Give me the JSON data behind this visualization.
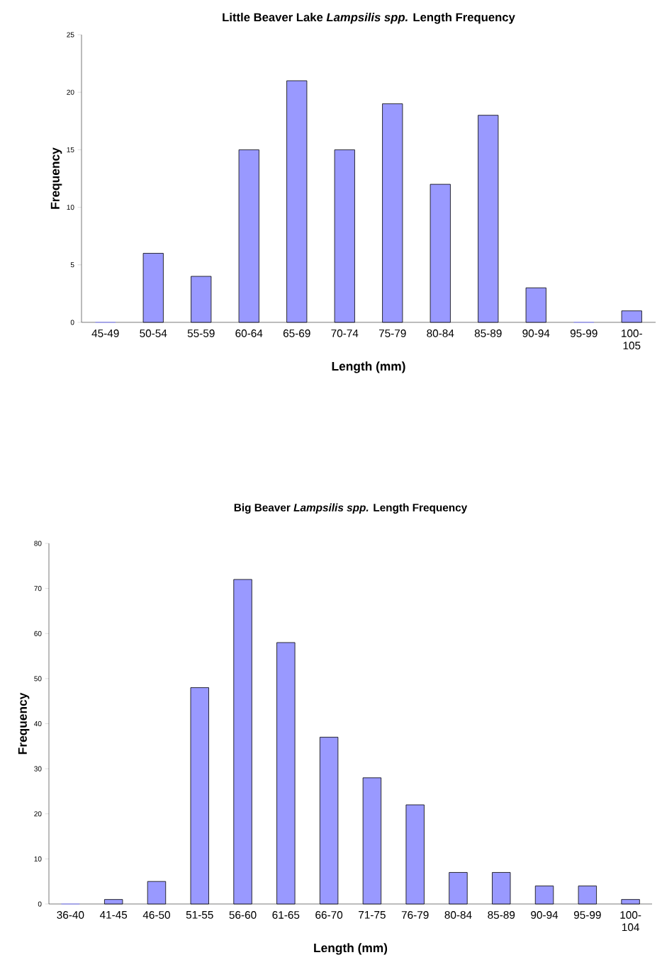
{
  "chart_data": [
    {
      "type": "bar",
      "title": "Little Beaver Lake *Lampsilis spp.* Length Frequency",
      "xlabel": "Length (mm)",
      "ylabel": "Frequency",
      "categories": [
        "45-49",
        "50-54",
        "55-59",
        "60-64",
        "65-69",
        "70-74",
        "75-79",
        "80-84",
        "85-89",
        "90-94",
        "95-99",
        "100-105"
      ],
      "values": [
        0,
        6,
        4,
        15,
        21,
        15,
        19,
        12,
        18,
        3,
        0,
        1
      ],
      "color": "#9999ff",
      "ylim": [
        0,
        25
      ],
      "yticks": [
        0,
        5,
        10,
        15,
        20,
        25
      ],
      "grid": false
    },
    {
      "type": "bar",
      "title": "Big Beaver *Lampsilis spp.* Length Frequency",
      "xlabel": "Length (mm)",
      "ylabel": "Frequency",
      "categories": [
        "36-40",
        "41-45",
        "46-50",
        "51-55",
        "56-60",
        "61-65",
        "66-70",
        "71-75",
        "76-79",
        "80-84",
        "85-89",
        "90-94",
        "95-99",
        "100-104"
      ],
      "values": [
        0,
        1,
        5,
        48,
        72,
        58,
        37,
        28,
        22,
        7,
        7,
        4,
        4,
        1
      ],
      "color": "#9999ff",
      "ylim": [
        0,
        80
      ],
      "yticks": [
        0,
        10,
        20,
        30,
        40,
        50,
        60,
        70,
        80
      ],
      "grid": false
    }
  ]
}
